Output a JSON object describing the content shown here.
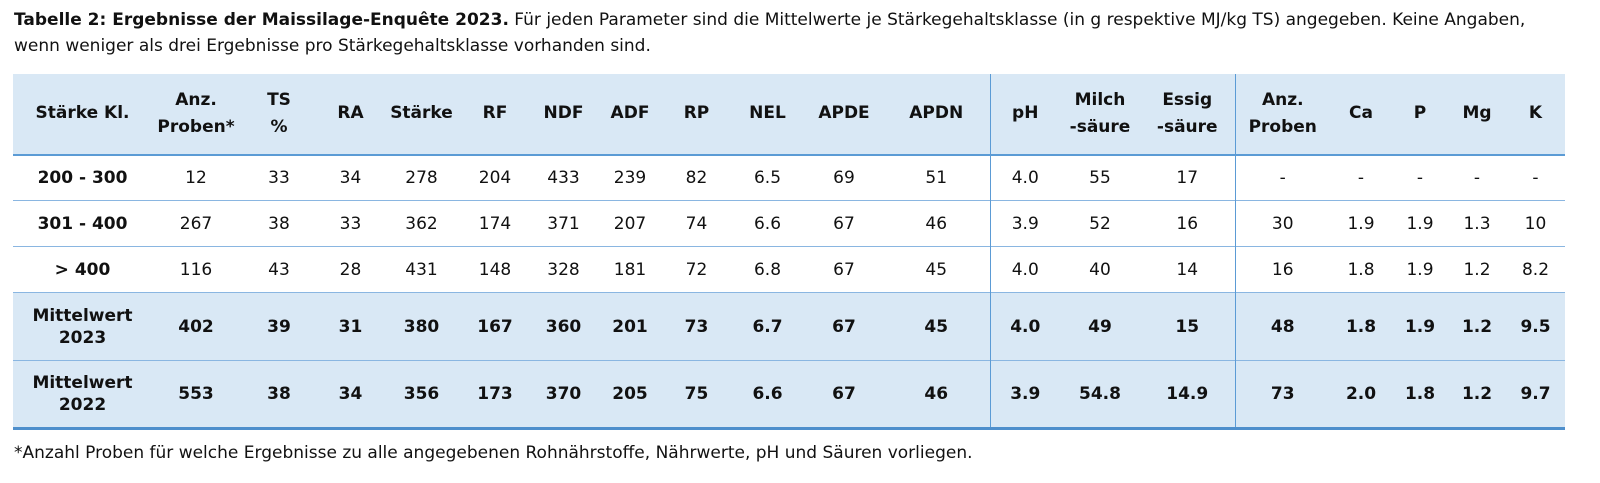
{
  "caption": {
    "bold": "Tabelle 2: Ergebnisse der Maissilage-Enquête 2023.",
    "rest": " Für jeden Parameter sind die Mittelwerte je Stärkegehaltsklasse (in g respektive MJ/kg TS) angegeben. Keine Angaben, wenn weniger als drei Ergebnisse pro Stärkegehaltsklasse vorhanden sind."
  },
  "footnote": "*Anzahl Proben für welche Ergebnisse zu alle angegebenen Rohnährstoffe, Nährwerte, pH und Säuren vorliegen.",
  "colors": {
    "shading": "#d9e8f5",
    "strong_line": "#5b9bd5",
    "row_separator": "#8ab6e1",
    "bottom_line": "#4e8fcc",
    "text": "#111111"
  },
  "table": {
    "divider_cols": [
      12,
      15
    ],
    "columns": [
      {
        "line1": "",
        "line2": "Stärke Kl."
      },
      {
        "line1": "Anz.",
        "line2": "Proben*"
      },
      {
        "line1": "TS",
        "line2": "%"
      },
      {
        "line1": "",
        "line2": "RA"
      },
      {
        "line1": "",
        "line2": "Stärke"
      },
      {
        "line1": "",
        "line2": "RF"
      },
      {
        "line1": "",
        "line2": "NDF"
      },
      {
        "line1": "",
        "line2": "ADF"
      },
      {
        "line1": "",
        "line2": "RP"
      },
      {
        "line1": "",
        "line2": "NEL"
      },
      {
        "line1": "",
        "line2": "APDE"
      },
      {
        "line1": "",
        "line2": "APDN"
      },
      {
        "line1": "",
        "line2": "pH"
      },
      {
        "line1": "Milch",
        "line2": "-säure"
      },
      {
        "line1": "Essig",
        "line2": "-säure"
      },
      {
        "line1": "Anz.",
        "line2": "Proben"
      },
      {
        "line1": "",
        "line2": "Ca"
      },
      {
        "line1": "",
        "line2": "P"
      },
      {
        "line1": "",
        "line2": "Mg"
      },
      {
        "line1": "",
        "line2": "K"
      }
    ],
    "rows": [
      {
        "label": "200 - 300",
        "shaded": false,
        "values": [
          "12",
          "33",
          "34",
          "278",
          "204",
          "433",
          "239",
          "82",
          "6.5",
          "69",
          "51",
          "4.0",
          "55",
          "17",
          "-",
          "-",
          "-",
          "-",
          "-"
        ]
      },
      {
        "label": "301 - 400",
        "shaded": false,
        "values": [
          "267",
          "38",
          "33",
          "362",
          "174",
          "371",
          "207",
          "74",
          "6.6",
          "67",
          "46",
          "3.9",
          "52",
          "16",
          "30",
          "1.9",
          "1.9",
          "1.3",
          "10"
        ]
      },
      {
        "label": "> 400",
        "shaded": false,
        "values": [
          "116",
          "43",
          "28",
          "431",
          "148",
          "328",
          "181",
          "72",
          "6.8",
          "67",
          "45",
          "4.0",
          "40",
          "14",
          "16",
          "1.8",
          "1.9",
          "1.2",
          "8.2"
        ]
      },
      {
        "label": "Mittelwert 2023",
        "shaded": true,
        "values": [
          "402",
          "39",
          "31",
          "380",
          "167",
          "360",
          "201",
          "73",
          "6.7",
          "67",
          "45",
          "4.0",
          "49",
          "15",
          "48",
          "1.8",
          "1.9",
          "1.2",
          "9.5"
        ]
      },
      {
        "label": "Mittelwert 2022",
        "shaded": true,
        "values": [
          "553",
          "38",
          "34",
          "356",
          "173",
          "370",
          "205",
          "75",
          "6.6",
          "67",
          "46",
          "3.9",
          "54.8",
          "14.9",
          "73",
          "2.0",
          "1.8",
          "1.2",
          "9.7"
        ]
      }
    ]
  }
}
